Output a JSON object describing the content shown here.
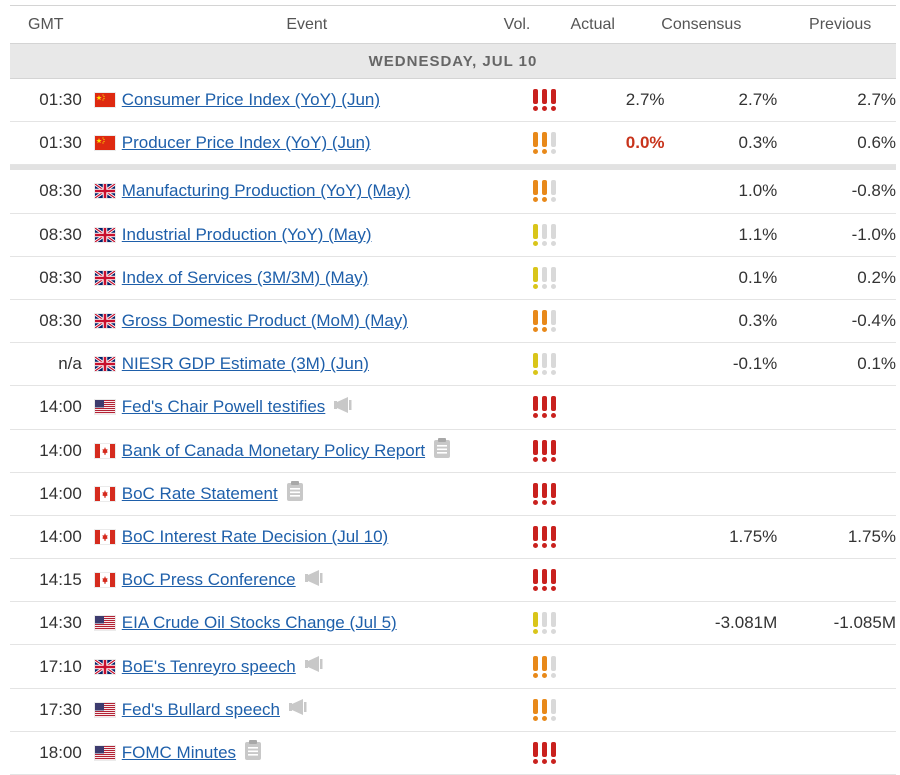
{
  "colors": {
    "red_vol": "#c9211e",
    "orange_vol": "#e8891a",
    "yellow_vol": "#d9c51a",
    "gray_vol": "#d9d9d9",
    "link": "#1e5faa"
  },
  "header": {
    "gmt": "GMT",
    "event": "Event",
    "vol": "Vol.",
    "actual": "Actual",
    "consensus": "Consensus",
    "previous": "Previous"
  },
  "day": "WEDNESDAY, JUL 10",
  "rows": [
    {
      "time": "01:30",
      "flag": "cn",
      "event": "Consumer Price Index (YoY) (Jun)",
      "vol": 3,
      "vol_color": "red",
      "actual": "2.7%",
      "consensus": "2.7%",
      "previous": "2.7%",
      "icon": ""
    },
    {
      "time": "01:30",
      "flag": "cn",
      "event": "Producer Price Index (YoY) (Jun)",
      "vol": 2,
      "vol_color": "orange",
      "actual": "0.0%",
      "actual_style": "neg",
      "consensus": "0.3%",
      "previous": "0.6%",
      "icon": ""
    },
    {
      "time": "08:30",
      "flag": "gb",
      "event": "Manufacturing Production (YoY) (May)",
      "vol": 2,
      "vol_color": "orange",
      "actual": "",
      "consensus": "1.0%",
      "previous": "-0.8%",
      "icon": "",
      "sep_before": true
    },
    {
      "time": "08:30",
      "flag": "gb",
      "event": "Industrial Production (YoY) (May)",
      "vol": 1,
      "vol_color": "yellow",
      "actual": "",
      "consensus": "1.1%",
      "previous": "-1.0%",
      "icon": ""
    },
    {
      "time": "08:30",
      "flag": "gb",
      "event": "Index of Services (3M/3M) (May)",
      "vol": 1,
      "vol_color": "yellow",
      "actual": "",
      "consensus": "0.1%",
      "previous": "0.2%",
      "icon": ""
    },
    {
      "time": "08:30",
      "flag": "gb",
      "event": "Gross Domestic Product (MoM) (May)",
      "vol": 2,
      "vol_color": "orange",
      "actual": "",
      "consensus": "0.3%",
      "previous": "-0.4%",
      "icon": ""
    },
    {
      "time": "n/a",
      "flag": "gb",
      "event": "NIESR GDP Estimate (3M) (Jun)",
      "vol": 1,
      "vol_color": "yellow",
      "actual": "",
      "consensus": "-0.1%",
      "previous": "0.1%",
      "icon": ""
    },
    {
      "time": "14:00",
      "flag": "us",
      "event": "Fed's Chair Powell testifies",
      "vol": 3,
      "vol_color": "red",
      "actual": "",
      "consensus": "",
      "previous": "",
      "icon": "megaphone-icon"
    },
    {
      "time": "14:00",
      "flag": "ca",
      "event": "Bank of Canada Monetary Policy Report",
      "vol": 3,
      "vol_color": "red",
      "actual": "",
      "consensus": "",
      "previous": "",
      "icon": "report-icon"
    },
    {
      "time": "14:00",
      "flag": "ca",
      "event": "BoC Rate Statement",
      "vol": 3,
      "vol_color": "red",
      "actual": "",
      "consensus": "",
      "previous": "",
      "icon": "report-icon"
    },
    {
      "time": "14:00",
      "flag": "ca",
      "event": "BoC Interest Rate Decision (Jul 10)",
      "vol": 3,
      "vol_color": "red",
      "actual": "",
      "consensus": "1.75%",
      "previous": "1.75%",
      "icon": ""
    },
    {
      "time": "14:15",
      "flag": "ca",
      "event": "BoC Press Conference",
      "vol": 3,
      "vol_color": "red",
      "actual": "",
      "consensus": "",
      "previous": "",
      "icon": "megaphone-icon"
    },
    {
      "time": "14:30",
      "flag": "us",
      "event": "EIA Crude Oil Stocks Change (Jul 5)",
      "vol": 1,
      "vol_color": "yellow",
      "actual": "",
      "consensus": "-3.081M",
      "previous": "-1.085M",
      "icon": ""
    },
    {
      "time": "17:10",
      "flag": "gb",
      "event": "BoE's Tenreyro speech",
      "vol": 2,
      "vol_color": "orange",
      "actual": "",
      "consensus": "",
      "previous": "",
      "icon": "megaphone-icon"
    },
    {
      "time": "17:30",
      "flag": "us",
      "event": "Fed's Bullard speech",
      "vol": 2,
      "vol_color": "orange",
      "actual": "",
      "consensus": "",
      "previous": "",
      "icon": "megaphone-icon"
    },
    {
      "time": "18:00",
      "flag": "us",
      "event": "FOMC Minutes",
      "vol": 3,
      "vol_color": "red",
      "actual": "",
      "consensus": "",
      "previous": "",
      "icon": "report-icon"
    }
  ]
}
